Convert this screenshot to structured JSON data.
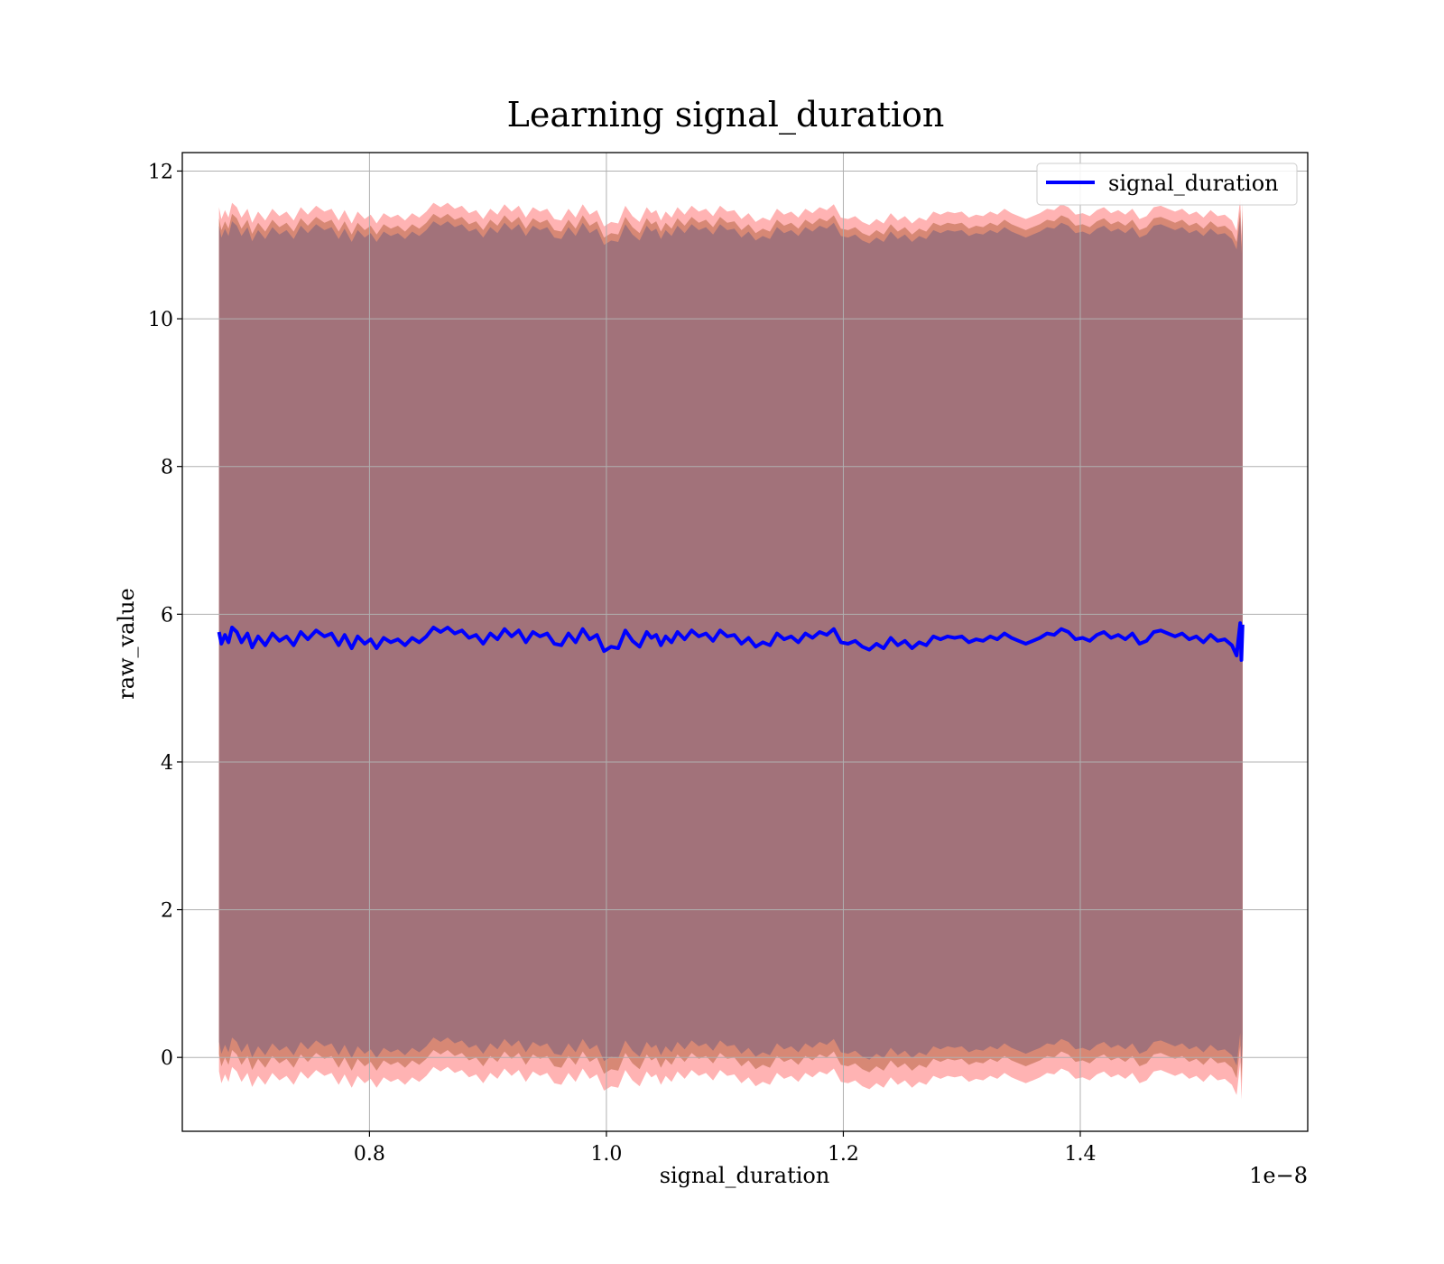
{
  "chart_data": {
    "type": "line",
    "title": "Learning signal_duration",
    "xlabel": "signal_duration",
    "ylabel": "raw_value",
    "x_offset_label": "1e−8",
    "xlim": [
      0.642,
      1.592
    ],
    "ylim": [
      -1.0,
      12.25
    ],
    "x_ticks": [
      0.8,
      1.0,
      1.2,
      1.4
    ],
    "x_tick_labels": [
      "0.8",
      "1.0",
      "1.2",
      "1.4"
    ],
    "y_ticks": [
      0,
      2,
      4,
      6,
      8,
      10,
      12
    ],
    "y_tick_labels": [
      "0",
      "2",
      "4",
      "6",
      "8",
      "10",
      "12"
    ],
    "grid": true,
    "legend_position": "upper right",
    "x_range": [
      0.673,
      1.537
    ],
    "series": [
      {
        "name": "signal_duration",
        "color": "#0000ff",
        "x": [
          0.673,
          0.675,
          0.678,
          0.681,
          0.684,
          0.688,
          0.692,
          0.697,
          0.701,
          0.706,
          0.712,
          0.718,
          0.724,
          0.73,
          0.736,
          0.742,
          0.748,
          0.755,
          0.762,
          0.768,
          0.774,
          0.779,
          0.785,
          0.79,
          0.796,
          0.801,
          0.806,
          0.812,
          0.818,
          0.824,
          0.83,
          0.836,
          0.842,
          0.848,
          0.854,
          0.86,
          0.866,
          0.872,
          0.878,
          0.884,
          0.89,
          0.896,
          0.902,
          0.908,
          0.914,
          0.92,
          0.926,
          0.932,
          0.938,
          0.944,
          0.95,
          0.956,
          0.962,
          0.968,
          0.974,
          0.98,
          0.986,
          0.992,
          0.998,
          1.004,
          1.01,
          1.016,
          1.022,
          1.028,
          1.034,
          1.038,
          1.042,
          1.046,
          1.05,
          1.055,
          1.06,
          1.066,
          1.072,
          1.078,
          1.084,
          1.09,
          1.096,
          1.102,
          1.108,
          1.114,
          1.12,
          1.126,
          1.132,
          1.138,
          1.144,
          1.15,
          1.156,
          1.162,
          1.168,
          1.174,
          1.18,
          1.186,
          1.192,
          1.198,
          1.204,
          1.21,
          1.216,
          1.222,
          1.228,
          1.234,
          1.24,
          1.246,
          1.252,
          1.258,
          1.264,
          1.27,
          1.276,
          1.282,
          1.288,
          1.294,
          1.3,
          1.306,
          1.312,
          1.318,
          1.324,
          1.33,
          1.336,
          1.342,
          1.348,
          1.354,
          1.36,
          1.366,
          1.372,
          1.378,
          1.384,
          1.39,
          1.396,
          1.402,
          1.408,
          1.414,
          1.42,
          1.426,
          1.432,
          1.438,
          1.444,
          1.45,
          1.456,
          1.462,
          1.468,
          1.474,
          1.48,
          1.486,
          1.492,
          1.498,
          1.504,
          1.51,
          1.516,
          1.522,
          1.528,
          1.532,
          1.535,
          1.536,
          1.537
        ],
        "values": [
          5.76,
          5.6,
          5.72,
          5.62,
          5.82,
          5.76,
          5.62,
          5.74,
          5.55,
          5.7,
          5.58,
          5.74,
          5.64,
          5.7,
          5.58,
          5.76,
          5.66,
          5.78,
          5.7,
          5.74,
          5.58,
          5.72,
          5.54,
          5.7,
          5.6,
          5.66,
          5.54,
          5.68,
          5.62,
          5.66,
          5.58,
          5.68,
          5.62,
          5.7,
          5.82,
          5.76,
          5.82,
          5.74,
          5.78,
          5.68,
          5.72,
          5.6,
          5.74,
          5.66,
          5.8,
          5.7,
          5.78,
          5.62,
          5.76,
          5.7,
          5.74,
          5.6,
          5.58,
          5.74,
          5.62,
          5.8,
          5.66,
          5.72,
          5.5,
          5.56,
          5.54,
          5.78,
          5.64,
          5.56,
          5.76,
          5.68,
          5.72,
          5.58,
          5.7,
          5.62,
          5.76,
          5.66,
          5.78,
          5.7,
          5.74,
          5.64,
          5.78,
          5.7,
          5.72,
          5.6,
          5.68,
          5.56,
          5.62,
          5.58,
          5.74,
          5.66,
          5.7,
          5.62,
          5.74,
          5.68,
          5.76,
          5.72,
          5.8,
          5.62,
          5.6,
          5.64,
          5.56,
          5.52,
          5.6,
          5.54,
          5.68,
          5.58,
          5.64,
          5.54,
          5.62,
          5.58,
          5.7,
          5.66,
          5.7,
          5.68,
          5.7,
          5.62,
          5.66,
          5.64,
          5.7,
          5.66,
          5.74,
          5.68,
          5.64,
          5.6,
          5.64,
          5.68,
          5.74,
          5.72,
          5.8,
          5.76,
          5.66,
          5.68,
          5.64,
          5.72,
          5.76,
          5.68,
          5.72,
          5.66,
          5.74,
          5.6,
          5.64,
          5.76,
          5.78,
          5.74,
          5.7,
          5.74,
          5.66,
          5.7,
          5.62,
          5.72,
          5.64,
          5.66,
          5.58,
          5.44,
          5.88,
          5.38,
          5.86
        ]
      }
    ],
    "bands": [
      {
        "color": "#ff9999",
        "opacity": 0.75,
        "sigma_upper": 5.75,
        "sigma_lower": 5.95
      },
      {
        "color": "#d0806a",
        "opacity": 0.85,
        "sigma_upper": 5.6,
        "sigma_lower": 5.72
      },
      {
        "color": "#a2727a",
        "opacity": 1.0,
        "sigma_upper": 5.5,
        "sigma_lower": 5.55
      }
    ]
  }
}
